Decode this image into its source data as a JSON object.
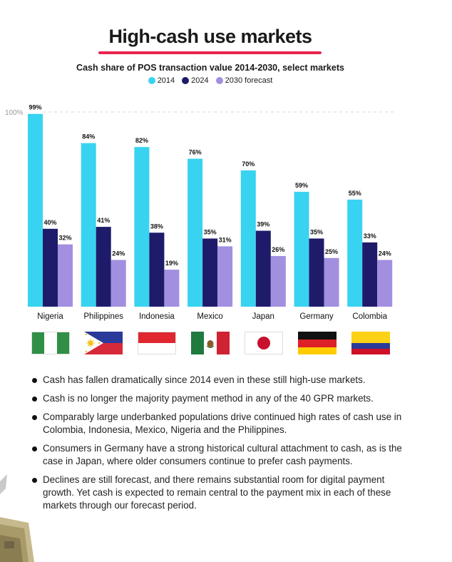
{
  "header": {
    "title": "High-cash use markets"
  },
  "chart_data": {
    "type": "bar",
    "title": "Cash share of POS transaction value 2014-2030, select markets",
    "categories": [
      "Nigeria",
      "Philippines",
      "Indonesia",
      "Mexico",
      "Japan",
      "Germany",
      "Colombia"
    ],
    "series": [
      {
        "name": "2014",
        "color": "#38d3f0",
        "values": [
          99,
          84,
          82,
          76,
          70,
          59,
          55
        ]
      },
      {
        "name": "2024",
        "color": "#1e1b6b",
        "values": [
          40,
          41,
          38,
          35,
          39,
          35,
          33
        ]
      },
      {
        "name": "2030 forecast",
        "color": "#a38fe0",
        "values": [
          32,
          24,
          19,
          31,
          26,
          25,
          24
        ]
      }
    ],
    "data_labels": [
      [
        "99%",
        "84%",
        "82%",
        "76%",
        "70%",
        "59%",
        "55%"
      ],
      [
        "40%",
        "41%",
        "38%",
        "35%",
        "39%",
        "35%",
        "33%"
      ],
      [
        "32%",
        "24%",
        "19%",
        "31%",
        "26%",
        "25%",
        "24%"
      ]
    ],
    "ylim": [
      0,
      100
    ],
    "gridline_label": "100%",
    "legend_position": "top-center",
    "xlabel": "",
    "ylabel": ""
  },
  "flags": [
    {
      "country": "Nigeria",
      "icon": "nigeria-flag-icon"
    },
    {
      "country": "Philippines",
      "icon": "philippines-flag-icon"
    },
    {
      "country": "Indonesia",
      "icon": "indonesia-flag-icon"
    },
    {
      "country": "Mexico",
      "icon": "mexico-flag-icon"
    },
    {
      "country": "Japan",
      "icon": "japan-flag-icon"
    },
    {
      "country": "Germany",
      "icon": "germany-flag-icon"
    },
    {
      "country": "Colombia",
      "icon": "colombia-flag-icon"
    }
  ],
  "bullets": [
    "Cash has fallen dramatically since 2014 even in these still high-use markets.",
    "Cash is no longer the majority payment method in any of the 40 GPR markets.",
    "Comparably large underbanked populations drive continued high rates of cash use in Colombia, Indonesia, Mexico, Nigeria and the Philippines.",
    "Consumers in Germany have a strong historical cultural attachment to cash, as is the case in Japan, where older consumers continue to prefer cash payments.",
    "Declines are still forecast, and there remains substantial room for digital payment growth. Yet cash is expected to remain central to the payment mix in each of these markets through our forecast period."
  ]
}
